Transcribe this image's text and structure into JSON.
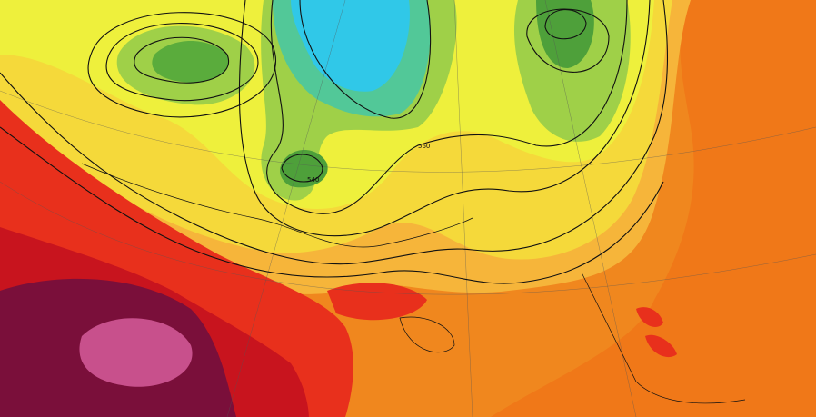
{
  "map": {
    "contour_labels": [
      "560",
      "540"
    ]
  }
}
